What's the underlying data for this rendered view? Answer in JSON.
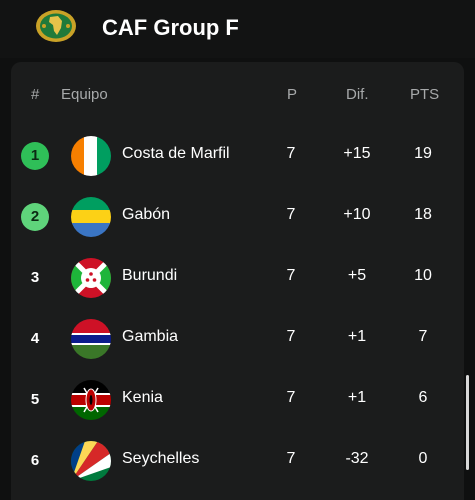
{
  "header": {
    "title": "CAF Group F",
    "logo_icon": "caf-logo-icon"
  },
  "columns": {
    "rank": "#",
    "team": "Equipo",
    "played": "P",
    "diff": "Dif.",
    "points": "PTS"
  },
  "rows": [
    {
      "rank": "1",
      "team": "Costa de Marfil",
      "played": "7",
      "diff": "+15",
      "points": "19",
      "qualified": "first",
      "flag_icon": "ivory-coast-flag-icon"
    },
    {
      "rank": "2",
      "team": "Gabón",
      "played": "7",
      "diff": "+10",
      "points": "18",
      "qualified": "second",
      "flag_icon": "gabon-flag-icon"
    },
    {
      "rank": "3",
      "team": "Burundi",
      "played": "7",
      "diff": "+5",
      "points": "10",
      "qualified": "none",
      "flag_icon": "burundi-flag-icon"
    },
    {
      "rank": "4",
      "team": "Gambia",
      "played": "7",
      "diff": "+1",
      "points": "7",
      "qualified": "none",
      "flag_icon": "gambia-flag-icon"
    },
    {
      "rank": "5",
      "team": "Kenia",
      "played": "7",
      "diff": "+1",
      "points": "6",
      "qualified": "none",
      "flag_icon": "kenya-flag-icon"
    },
    {
      "rank": "6",
      "team": "Seychelles",
      "played": "7",
      "diff": "-32",
      "points": "0",
      "qualified": "none",
      "flag_icon": "seychelles-flag-icon"
    }
  ],
  "colors": {
    "background": "#0f1010",
    "card": "#1b1c1c",
    "qualified_first": "#2fbf58",
    "qualified_second": "#5fd47b",
    "header_text": "#a7a9aa"
  }
}
